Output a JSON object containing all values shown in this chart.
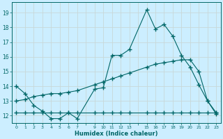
{
  "xlabel": "Humidex (Indice chaleur)",
  "bg_color": "#cceeff",
  "grid_color": "#d0e8e8",
  "line_color": "#006666",
  "x_positions": [
    0,
    1,
    2,
    3,
    4,
    5,
    6,
    7,
    8,
    9,
    10,
    11,
    12,
    13,
    14,
    15,
    16,
    17,
    18,
    19,
    20,
    21,
    22,
    23
  ],
  "x_tick_labels": [
    "0",
    "1",
    "2",
    "3",
    "4",
    "5",
    "6",
    "7",
    "",
    "9",
    "10",
    "11",
    "12",
    "13",
    "",
    "15",
    "16",
    "17",
    "18",
    "19",
    "20",
    "21",
    "22",
    "23"
  ],
  "y_ticks": [
    12,
    13,
    14,
    15,
    16,
    17,
    18,
    19
  ],
  "ylim": [
    11.5,
    19.7
  ],
  "xlim": [
    -0.5,
    23.5
  ],
  "line1_x": [
    0,
    1,
    2,
    3,
    4,
    5,
    6,
    7,
    9,
    10,
    11,
    12,
    13,
    15,
    16,
    17,
    18,
    19,
    20,
    21,
    22,
    23
  ],
  "line1_y": [
    14.0,
    13.5,
    12.7,
    12.3,
    11.8,
    11.8,
    12.2,
    11.8,
    13.8,
    13.9,
    16.1,
    16.1,
    16.5,
    19.2,
    17.9,
    18.2,
    17.4,
    16.1,
    15.3,
    14.1,
    13.0,
    12.2
  ],
  "line2_x": [
    0,
    1,
    2,
    3,
    4,
    5,
    6,
    7,
    9,
    10,
    11,
    12,
    13,
    15,
    16,
    17,
    18,
    19,
    20,
    21,
    22,
    23
  ],
  "line2_y": [
    13.0,
    13.1,
    13.3,
    13.4,
    13.5,
    13.5,
    13.6,
    13.7,
    14.1,
    14.3,
    14.5,
    14.7,
    14.9,
    15.3,
    15.5,
    15.6,
    15.7,
    15.8,
    15.8,
    15.0,
    13.0,
    12.1
  ],
  "line3_x": [
    0,
    1,
    2,
    3,
    4,
    5,
    6,
    7,
    9,
    10,
    11,
    12,
    13,
    15,
    16,
    17,
    18,
    19,
    20,
    21,
    22,
    23
  ],
  "line3_y": [
    12.2,
    12.2,
    12.2,
    12.2,
    12.2,
    12.2,
    12.2,
    12.2,
    12.2,
    12.2,
    12.2,
    12.2,
    12.2,
    12.2,
    12.2,
    12.2,
    12.2,
    12.2,
    12.2,
    12.2,
    12.2,
    12.2
  ]
}
